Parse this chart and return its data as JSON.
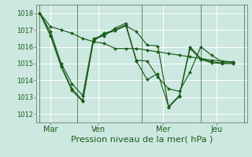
{
  "title": "",
  "xlabel": "Pression niveau de la mer( hPa )",
  "bg_color": "#cce8e0",
  "line_color": "#1a5c1a",
  "grid_color": "#ffffff",
  "ylim": [
    1011.5,
    1018.5
  ],
  "yticks": [
    1012,
    1013,
    1014,
    1015,
    1016,
    1017,
    1018
  ],
  "xlim": [
    -0.3,
    19.3
  ],
  "day_positions": [
    1.0,
    5.5,
    11.5,
    16.5
  ],
  "day_labels": [
    "Mar",
    "Ven",
    "Mer",
    "Jeu"
  ],
  "vline_positions": [
    0.0,
    3.5,
    9.5,
    15.0,
    19.0
  ],
  "series": [
    [
      1018.0,
      1017.2,
      1017.0,
      1016.8,
      1016.5,
      1016.3,
      1016.2,
      1015.9,
      1015.9,
      1015.9,
      1015.8,
      1015.7,
      1015.6,
      1015.5,
      1015.4,
      1015.3,
      1015.2,
      1015.15,
      1015.1
    ],
    [
      1018.0,
      1016.9,
      1015.0,
      1013.8,
      1013.1,
      1016.5,
      1016.65,
      1017.1,
      1017.4,
      1015.2,
      1015.15,
      1014.2,
      1013.5,
      1013.35,
      1014.5,
      1016.0,
      1015.5,
      1015.1,
      1015.1
    ],
    [
      1018.0,
      1016.7,
      1014.85,
      1013.5,
      1012.8,
      1016.4,
      1016.8,
      1017.0,
      1017.3,
      1015.15,
      1014.05,
      1014.4,
      1012.45,
      1013.1,
      1016.0,
      1015.3,
      1015.1,
      1015.05,
      1015.05
    ],
    [
      1018.0,
      1016.65,
      1014.8,
      1013.4,
      1012.75,
      1016.35,
      1016.75,
      1016.95,
      1017.25,
      1016.9,
      1016.1,
      1016.05,
      1012.4,
      1013.05,
      1015.9,
      1015.25,
      1015.05,
      1015.0,
      1015.0
    ]
  ],
  "xlabel_fontsize": 8,
  "ytick_fontsize": 6,
  "xtick_fontsize": 7
}
